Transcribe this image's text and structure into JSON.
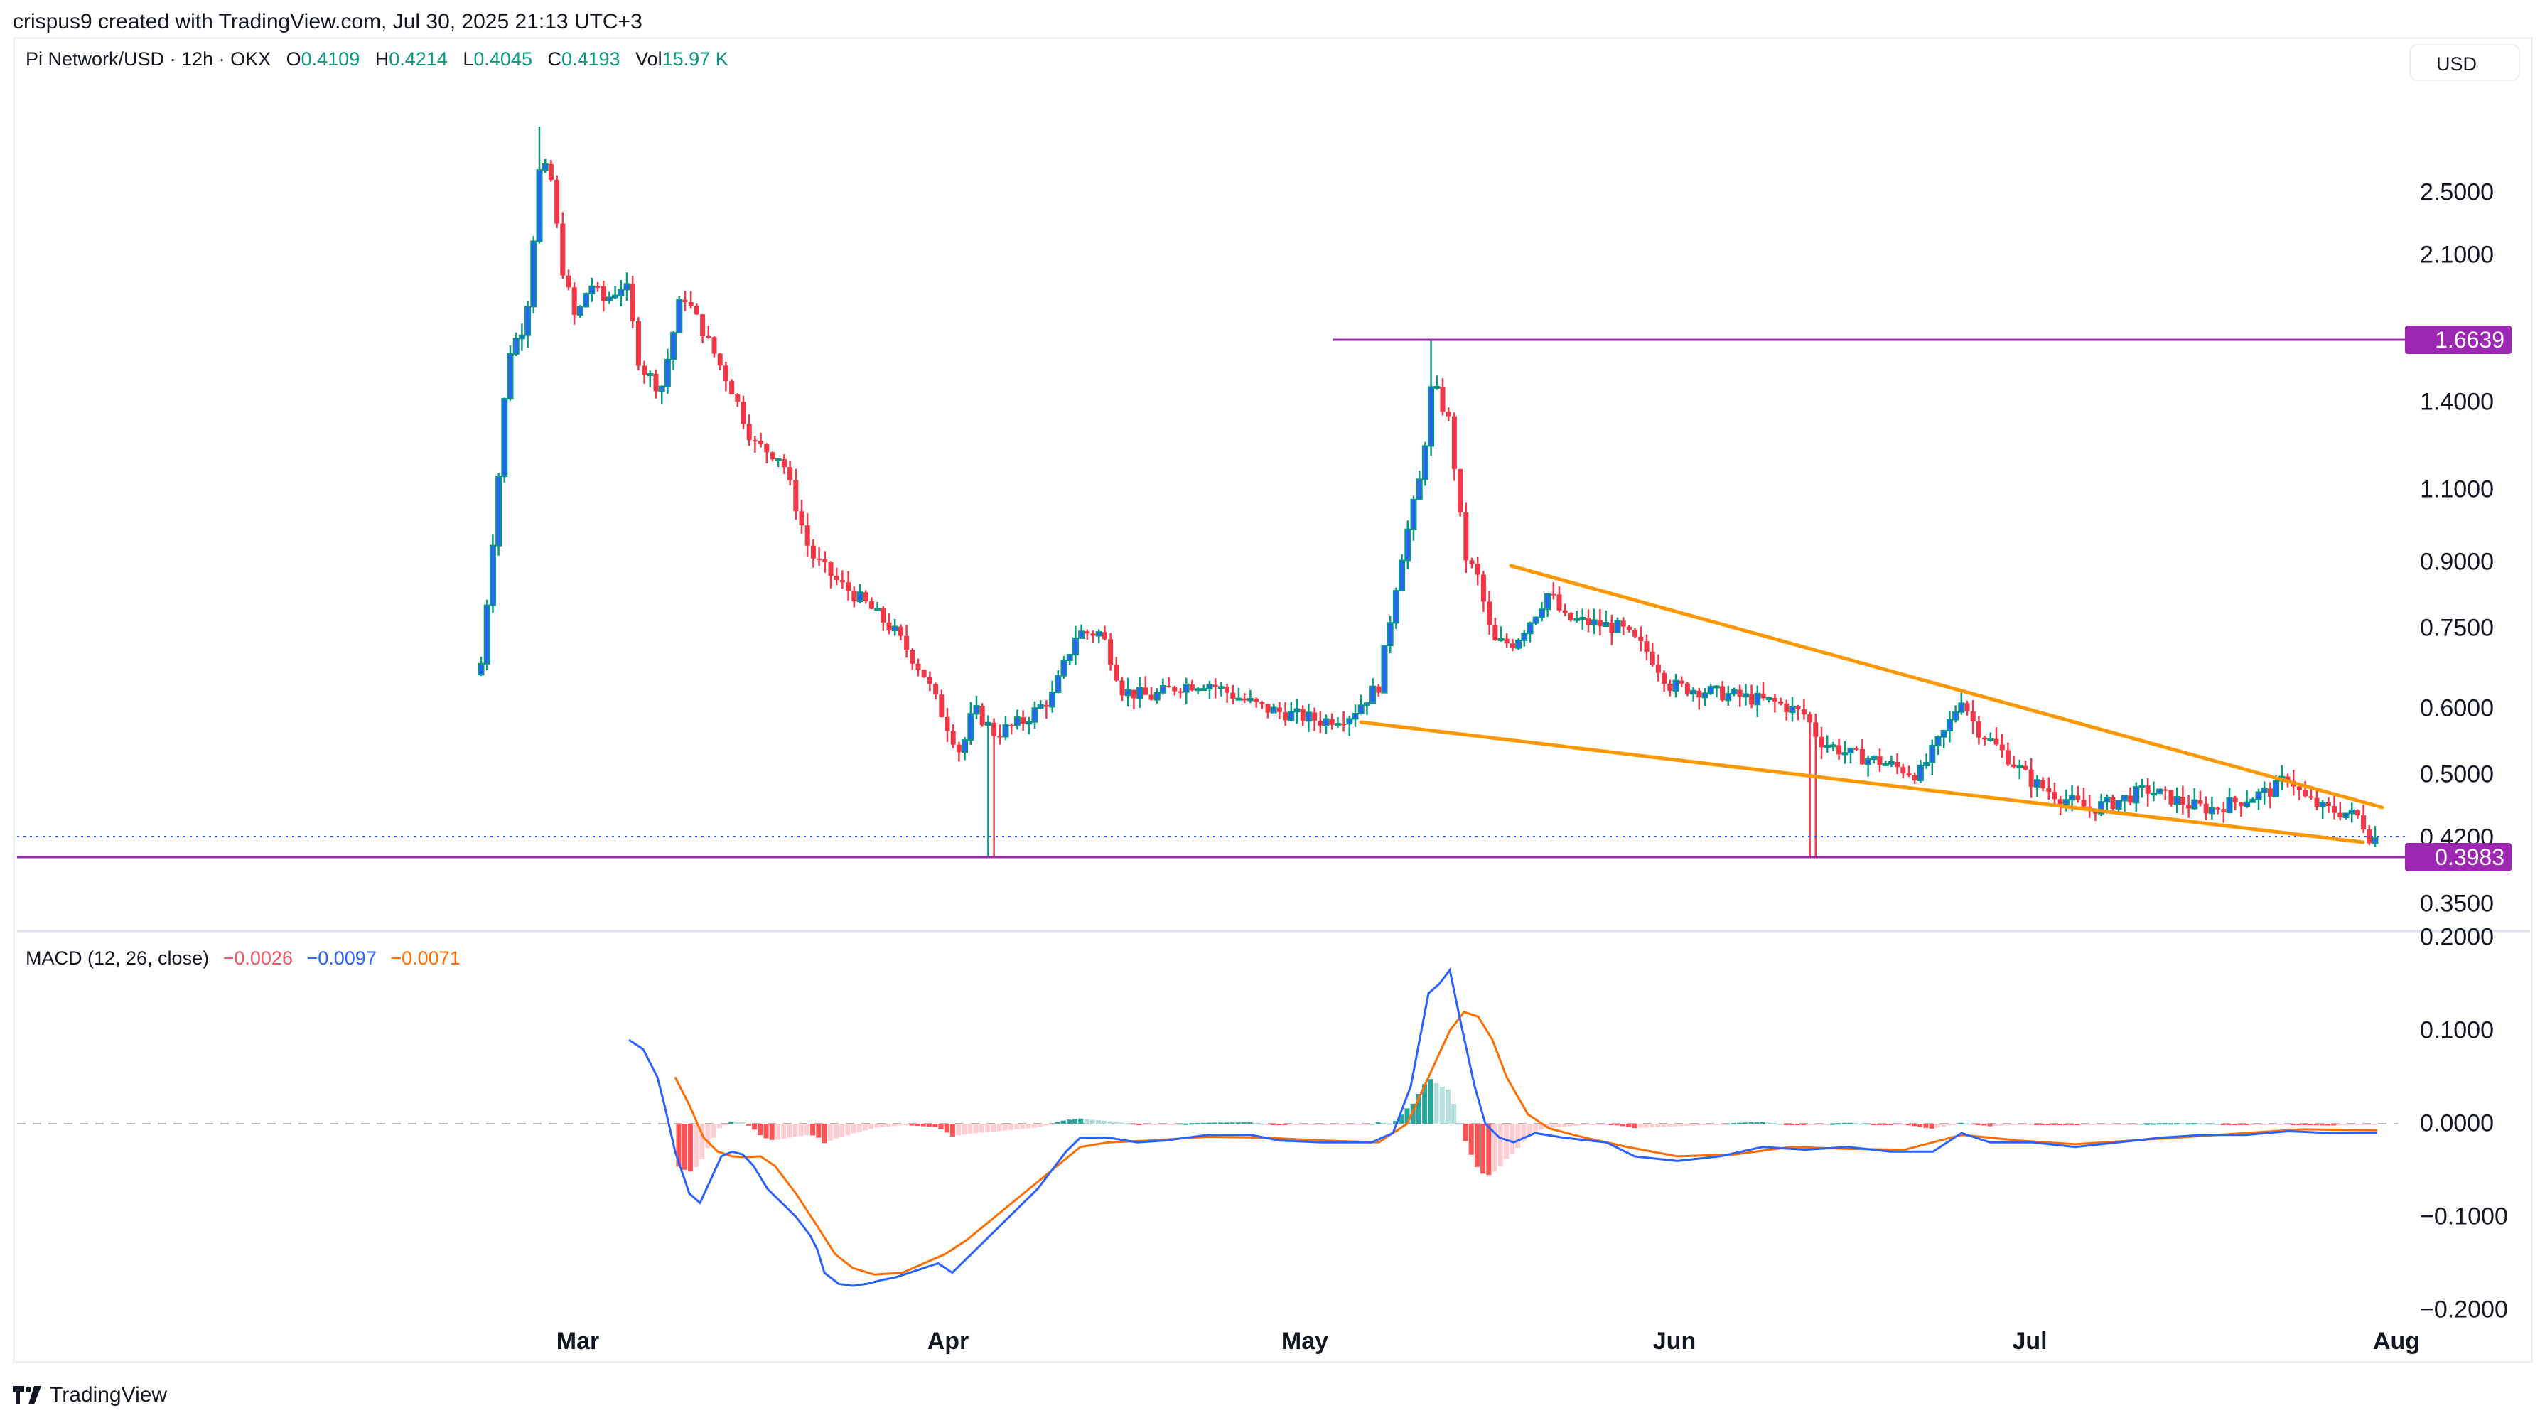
{
  "credit": "crispus9 created with TradingView.com, Jul 30, 2025 21:13 UTC+3",
  "legend": {
    "symbol": "Pi Network/USD · 12h · OKX",
    "open_label": "O",
    "open": "0.4109",
    "high_label": "H",
    "high": "0.4214",
    "low_label": "L",
    "low": "0.4045",
    "close_label": "C",
    "close": "0.4193",
    "vol_label": "Vol",
    "vol": "15.97 K"
  },
  "currency": "USD",
  "price_axis": [
    "2.5000",
    "2.1000",
    "1.4000",
    "1.1000",
    "0.9000",
    "0.7500",
    "0.6000",
    "0.5000",
    "0.4200",
    "0.3500"
  ],
  "price_tags": {
    "resistance": "1.6639",
    "support": "0.3983"
  },
  "macd": {
    "label": "MACD (12, 26, close)",
    "histogram": "−0.0026",
    "macd": "−0.0097",
    "signal": "−0.0071",
    "axis": [
      "0.2000",
      "0.1000",
      "0.0000",
      "−0.1000",
      "−0.2000"
    ]
  },
  "time_axis": [
    "Mar",
    "Apr",
    "May",
    "Jun",
    "Jul",
    "Aug"
  ],
  "footer_logo": "TradingView",
  "colors": {
    "up_body": "#2962ff",
    "up_border": "#089981",
    "down": "#f23645",
    "resistance_line": "#9c27b0",
    "wedge": "#ff9800",
    "macd_line": "#2962ff",
    "signal_line": "#ff6d00",
    "hist_pos_strong": "#26a69a",
    "hist_pos_weak": "#b2dfdb",
    "hist_neg_strong": "#ff5252",
    "hist_neg_weak": "#ffcdd2"
  },
  "chart_data": [
    {
      "type": "candlestick",
      "title": "Pi Network/USD · 12h · OKX",
      "xlabel": "",
      "ylabel": "USD",
      "x_ticks": [
        "Mar",
        "Apr",
        "May",
        "Jun",
        "Jul",
        "Aug"
      ],
      "y_ticks": [
        2.5,
        2.1,
        1.4,
        1.1,
        0.9,
        0.75,
        0.6,
        0.5,
        0.42,
        0.35
      ],
      "y_scale": "log",
      "ylim": [
        0.33,
        3.0
      ],
      "last_ohlc": {
        "open": 0.4109,
        "high": 0.4214,
        "low": 0.4045,
        "close": 0.4193,
        "volume": "15.97K"
      },
      "annotations": [
        {
          "type": "horizontal_line",
          "value": 1.6639,
          "label": "1.6639",
          "color": "#9c27b0",
          "from": "mid-May"
        },
        {
          "type": "horizontal_line",
          "value": 0.3983,
          "label": "0.3983",
          "color": "#9c27b0"
        },
        {
          "type": "trendline",
          "name": "falling wedge upper",
          "from": [
            "late May",
            0.88
          ],
          "to": [
            "end Jul",
            0.45
          ],
          "color": "#ff9800"
        },
        {
          "type": "trendline",
          "name": "falling wedge lower",
          "from": [
            "early May",
            0.57
          ],
          "to": [
            "end Jul",
            0.41
          ],
          "color": "#ff9800"
        }
      ],
      "approx_closes_by_period": [
        {
          "period": "late Feb",
          "close": 0.68
        },
        {
          "period": "~Feb 26 peak",
          "high": 3.0,
          "close": 2.7
        },
        {
          "period": "early Mar",
          "close": 1.9
        },
        {
          "period": "mid Mar",
          "close": 1.3
        },
        {
          "period": "late Mar",
          "close": 0.82
        },
        {
          "period": "Apr 5 low",
          "low": 0.4,
          "close": 0.53
        },
        {
          "period": "mid Apr",
          "close": 0.72
        },
        {
          "period": "late Apr",
          "close": 0.62
        },
        {
          "period": "May 12 peak",
          "high": 1.6639,
          "close": 1.3
        },
        {
          "period": "late May",
          "close": 0.78
        },
        {
          "period": "mid Jun",
          "low": 0.4,
          "close": 0.55
        },
        {
          "period": "late Jun",
          "close": 0.61
        },
        {
          "period": "mid Jul",
          "close": 0.46
        },
        {
          "period": "late Jul",
          "close": 0.45
        },
        {
          "period": "Jul 30",
          "close": 0.4193
        }
      ]
    },
    {
      "type": "line",
      "title": "MACD (12, 26, close)",
      "legend_values": {
        "histogram": -0.0026,
        "macd": -0.0097,
        "signal": -0.0071
      },
      "y_ticks": [
        0.2,
        0.1,
        0.0,
        -0.1,
        -0.2
      ],
      "ylim": [
        -0.2,
        0.2
      ],
      "series": [
        {
          "name": "MACD",
          "color": "#2962ff",
          "points": [
            [
              "early Mar",
              0.09
            ],
            [
              "~Mar 8",
              -0.085
            ],
            [
              "~Mar 12",
              -0.03
            ],
            [
              "~Mar 22",
              -0.17
            ],
            [
              "~Apr 1",
              -0.14
            ],
            [
              "~Apr 8",
              -0.13
            ],
            [
              "~Apr 18",
              -0.02
            ],
            [
              "late Apr",
              -0.01
            ],
            [
              "May 12",
              0.165
            ],
            [
              "~May 22",
              -0.02
            ],
            [
              "~Jun 1",
              -0.045
            ],
            [
              "~Jun 15",
              -0.03
            ],
            [
              "~Jun 25",
              -0.02
            ],
            [
              "Jul",
              -0.025
            ],
            [
              "Jul 30",
              -0.0097
            ]
          ]
        },
        {
          "name": "Signal",
          "color": "#ff6d00",
          "points": [
            [
              "~Mar 10",
              0.05
            ],
            [
              "~Mar 14",
              -0.035
            ],
            [
              "~Mar 25",
              -0.16
            ],
            [
              "~Apr 8",
              -0.14
            ],
            [
              "~Apr 20",
              -0.03
            ],
            [
              "late Apr",
              -0.015
            ],
            [
              "May 15",
              0.12
            ],
            [
              "~May 25",
              0.0
            ],
            [
              "~Jun 1",
              -0.035
            ],
            [
              "~Jun 20",
              -0.025
            ],
            [
              "Jul",
              -0.02
            ],
            [
              "Jul 30",
              -0.0071
            ]
          ]
        },
        {
          "name": "Histogram",
          "type": "bar",
          "points": [
            [
              "~Mar 9",
              -0.08
            ],
            [
              "~Mar 14",
              0.005
            ],
            [
              "~Mar 28",
              -0.03
            ],
            [
              "~Apr 5",
              -0.04
            ],
            [
              "~Apr 14",
              0.015
            ],
            [
              "~Apr 22",
              0.0
            ],
            [
              "May 12",
              0.08
            ],
            [
              "May 18",
              -0.055
            ],
            [
              "Jun",
              0.0
            ],
            [
              "Jul 30",
              -0.0026
            ]
          ]
        }
      ]
    }
  ]
}
